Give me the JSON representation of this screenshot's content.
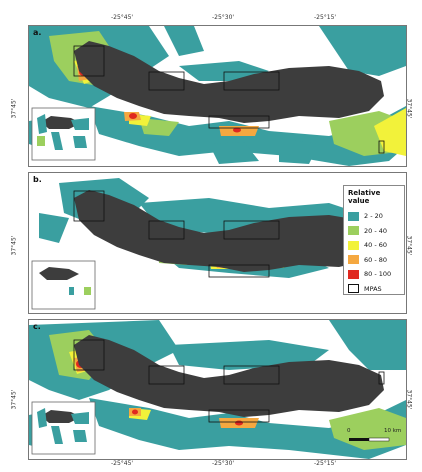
{
  "lon_ticks": [
    "-25°45'",
    "-25°30'",
    "-25°15'"
  ],
  "lat_tick": "37°45'",
  "panels": [
    {
      "label": "a."
    },
    {
      "label": "b."
    },
    {
      "label": "c."
    }
  ],
  "legend": {
    "title": "Relative value",
    "items": [
      {
        "label": "2 - 20",
        "color": "#3a9fa0"
      },
      {
        "label": "20 - 40",
        "color": "#9ccf5e"
      },
      {
        "label": "40 - 60",
        "color": "#f2f23a"
      },
      {
        "label": "60 - 80",
        "color": "#f5a840"
      },
      {
        "label": "80 - 100",
        "color": "#e0281f"
      },
      {
        "label": "MPAS",
        "color": "#ffffff"
      }
    ]
  },
  "scale": {
    "start": "0",
    "end": "10 km"
  },
  "colors": {
    "island": "#3d3d3d",
    "teal": "#3a9fa0",
    "green": "#9ccf5e",
    "yellow": "#f2f23a",
    "orange": "#f5a840",
    "red": "#e0281f"
  }
}
